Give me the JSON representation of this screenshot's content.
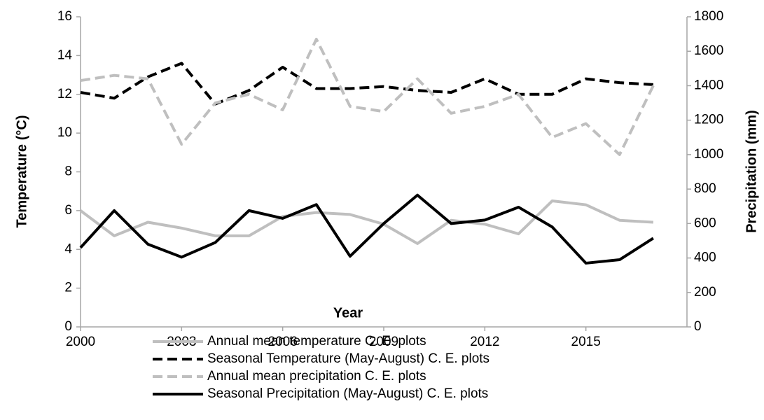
{
  "chart_data": {
    "type": "line",
    "xlabel": "Year",
    "ylabel": "Temperature (°C)",
    "y2label": "Precipitation (mm)",
    "x": [
      2000,
      2001,
      2002,
      2003,
      2004,
      2005,
      2006,
      2007,
      2008,
      2009,
      2010,
      2011,
      2012,
      2013,
      2014,
      2015,
      2016,
      2017
    ],
    "xlim": [
      2000,
      2018
    ],
    "xticks": [
      2000,
      2003,
      2006,
      2009,
      2012,
      2015
    ],
    "ylim": [
      0,
      16
    ],
    "yticks": [
      0,
      2,
      4,
      6,
      8,
      10,
      12,
      14,
      16
    ],
    "y2lim": [
      0,
      1800
    ],
    "y2ticks": [
      0,
      200,
      400,
      600,
      800,
      1000,
      1200,
      1400,
      1600,
      1800
    ],
    "grid": false,
    "legend": "bottom",
    "series": [
      {
        "name": "Annual mean temperature C. E. plots",
        "color": "#bfbfbf",
        "dash": "solid",
        "values": [
          6.0,
          4.7,
          5.4,
          5.1,
          4.7,
          4.7,
          5.7,
          5.9,
          5.8,
          5.3,
          4.3,
          5.5,
          5.3,
          4.8,
          6.5,
          6.3,
          5.5,
          5.4
        ]
      },
      {
        "name": "Seasonal Temperature (May-August) C. E. plots",
        "color": "#000000",
        "dash": "dashed",
        "values": [
          12.1,
          11.8,
          12.9,
          13.6,
          11.5,
          12.2,
          13.4,
          12.3,
          12.3,
          12.4,
          12.2,
          12.1,
          12.8,
          12.0,
          12.0,
          12.8,
          12.6,
          12.5
        ]
      },
      {
        "name": "Annual mean precipitation C. E. plots",
        "color": "#bfbfbf",
        "dash": "dashed",
        "axis": "y2",
        "values": [
          1430,
          1460,
          1440,
          1060,
          1300,
          1350,
          1260,
          1670,
          1280,
          1250,
          1440,
          1240,
          1280,
          1350,
          1100,
          1180,
          1000,
          1400
        ]
      },
      {
        "name": "Seasonal Precipitation (May-August) C. E. plots",
        "color": "#000000",
        "dash": "solid",
        "axis": "y2",
        "values": [
          460,
          675,
          480,
          405,
          490,
          675,
          630,
          710,
          410,
          600,
          765,
          600,
          620,
          695,
          580,
          370,
          390,
          515
        ]
      }
    ]
  }
}
